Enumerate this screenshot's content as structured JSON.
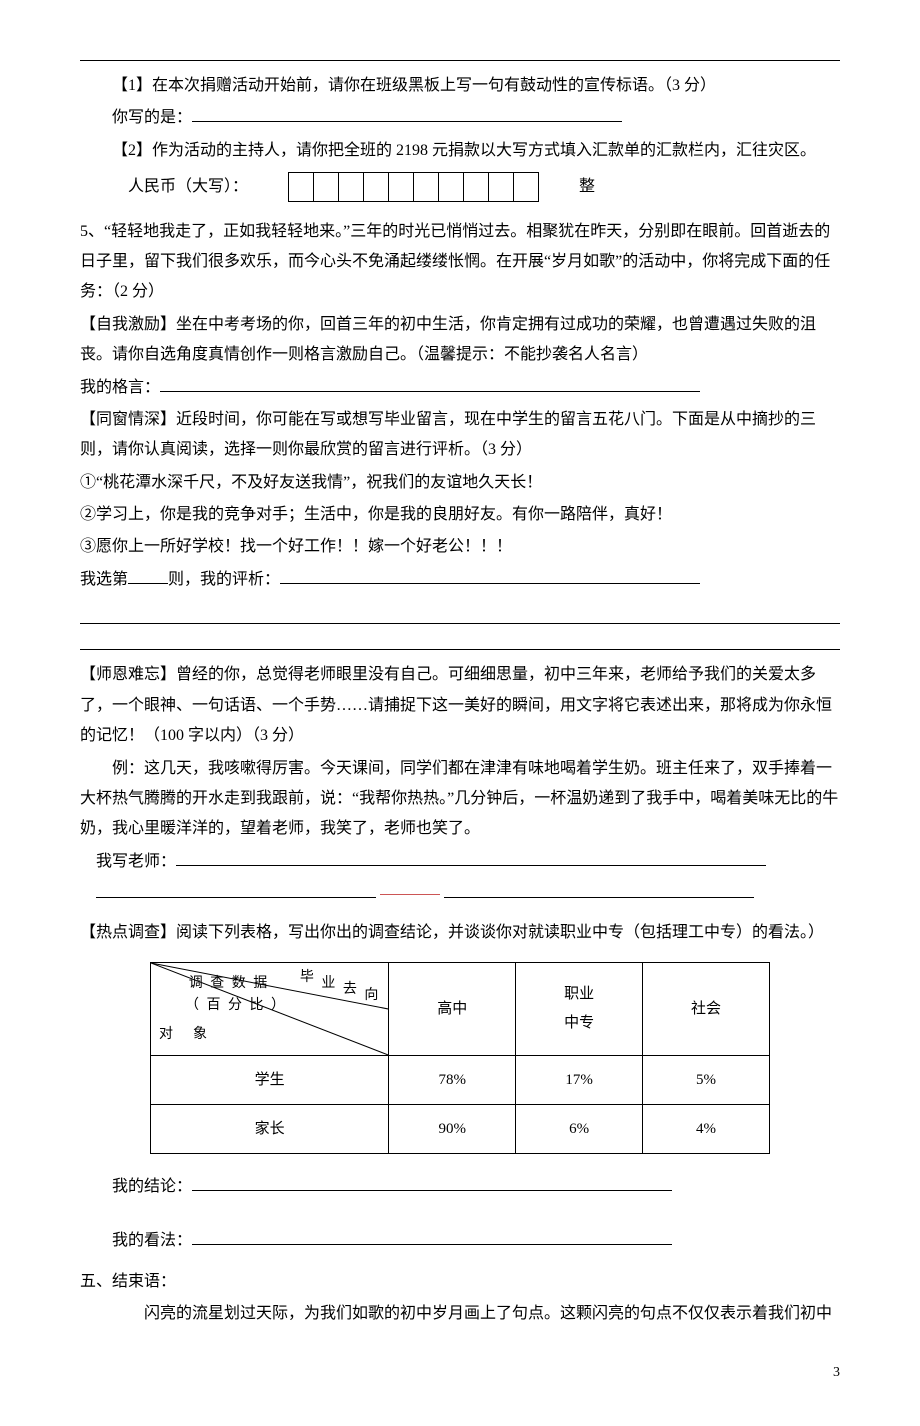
{
  "hr": true,
  "q4": {
    "p1": "【1】在本次捐赠活动开始前，请你在班级黑板上写一句有鼓动性的宣传标语。（3 分）",
    "p1_ans_label": "你写的是：",
    "p2": "【2】作为活动的主持人，请你把全班的 2198 元捐款以大写方式填入汇款单的汇款栏内，汇往灾区。",
    "rmb_label": "人民币（大写）：",
    "rmb_cells": 10,
    "rmb_tail": "整"
  },
  "q5": {
    "intro": "5、“轻轻地我走了，正如我轻轻地来。”三年的时光已悄悄过去。相聚犹在昨天，分别即在眼前。回首逝去的日子里，留下我们很多欢乐，而今心头不免涌起缕缕怅惘。在开展“岁月如歌”的活动中，你将完成下面的任务：（2 分）",
    "self_title": "【自我激励】坐在中考考场的你，回首三年的初中生活，你肯定拥有过成功的荣耀，也曾遭遇过失败的沮丧。请你自选角度真情创作一则格言激励自己。（温馨提示：不能抄袭名人名言）",
    "motto_label": "我的格言：",
    "peer_title": "【同窗情深】近段时间，你可能在写或想写毕业留言，现在中学生的留言五花八门。下面是从中摘抄的三则，请你认真阅读，选择一则你最欣赏的留言进行评析。（3 分）",
    "opt1": "①“桃花潭水深千尺，不及好友送我情”，祝我们的友谊地久天长！",
    "opt2": "②学习上，你是我的竞争对手；生活中，你是我的良朋好友。有你一路陪伴，真好！",
    "opt3": "③愿你上一所好学校！找一个好工作！！嫁一个好老公！！！",
    "choose_prefix": "我选第",
    "choose_mid": "则，我的评析：",
    "teacher_title": "【师恩难忘】曾经的你，总觉得老师眼里没有自己。可细细思量，初中三年来，老师给予我们的关爱太多了，一个眼神、一句话语、一个手势……请捕捉下这一美好的瞬间，用文字将它表述出来，那将成为你永恒的记忆！（100 字以内）（3 分）",
    "teacher_example": "例：这几天，我咳嗽得厉害。今天课间，同学们都在津津有味地喝着学生奶。班主任来了，双手捧着一大杯热气腾腾的开水走到我跟前，说：“我帮你热热。”几分钟后，一杯温奶递到了我手中，喝着美味无比的牛奶，我心里暖洋洋的，望着老师，我笑了，老师也笑了。",
    "teacher_label": "我写老师：",
    "survey_title": "【热点调查】阅读下列表格，写出你出的调查结论，并谈谈你对就读职业中专（包括理工中专）的看法。）"
  },
  "survey": {
    "diag_top1": "毕",
    "diag_top2": "业",
    "diag_top3": "去",
    "diag_top4": "向",
    "diag_left1": "调 查 数 据",
    "diag_left2": "（ 百 分 比 ）",
    "diag_bottom": "对　象",
    "cols": [
      "高中",
      "职业\n中专",
      "社会"
    ],
    "rows": [
      {
        "label": "学生",
        "vals": [
          "78%",
          "17%",
          "5%"
        ]
      },
      {
        "label": "家长",
        "vals": [
          "90%",
          "6%",
          "4%"
        ]
      }
    ]
  },
  "answers": {
    "conclusion_label": "我的结论：",
    "view_label": "我的看法："
  },
  "closing": {
    "heading": "五、结束语：",
    "body": "闪亮的流星划过天际，为我们如歌的初中岁月画上了句点。这颗闪亮的句点不仅仅表示着我们初中"
  },
  "page_number": "3"
}
